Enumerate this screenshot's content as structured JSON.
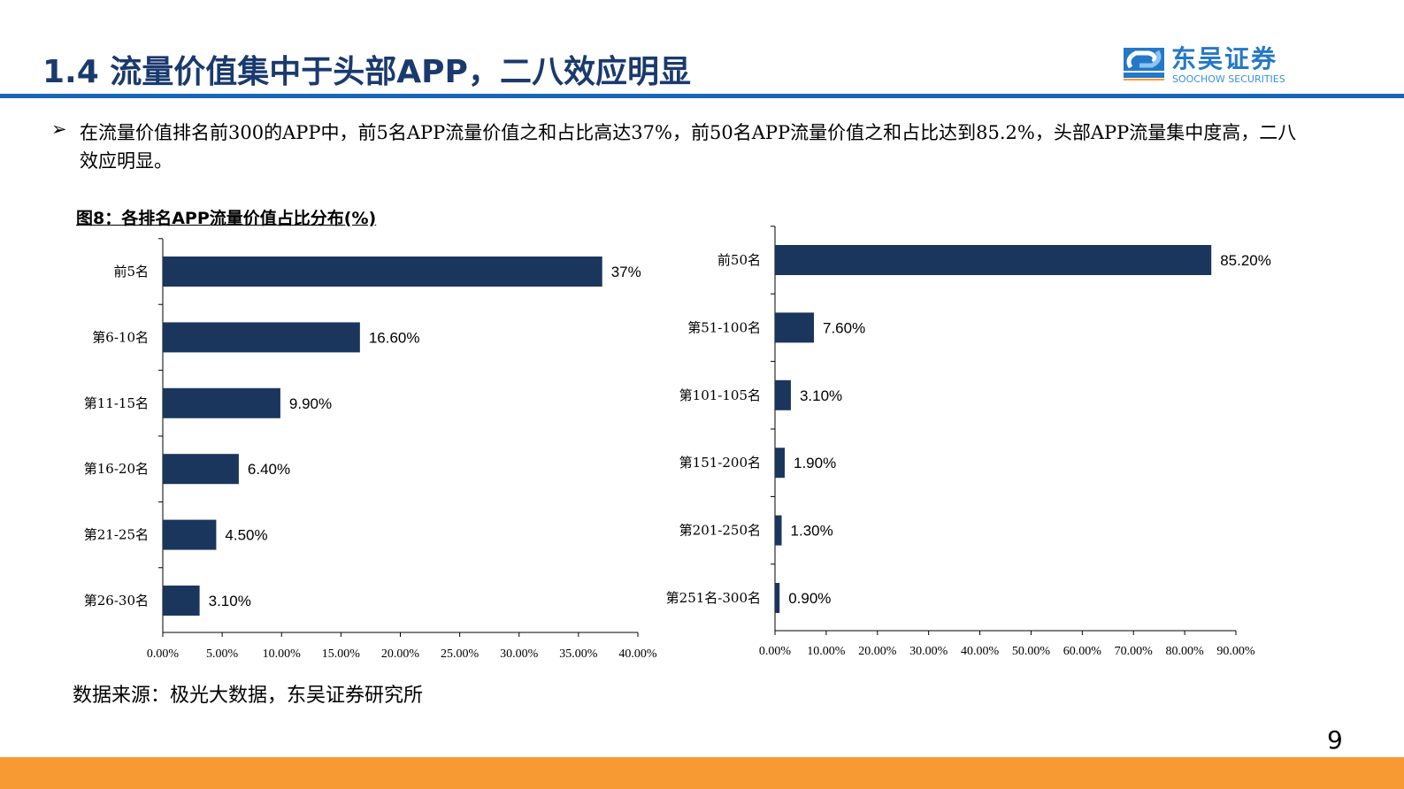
{
  "header": {
    "title": "1.4 流量价值集中于头部APP，二八效应明显",
    "logo_cn": "东吴证券",
    "logo_en": "SOOCHOW SECURITIES",
    "logo_mark": "SCS"
  },
  "bullet_icon": "arrow-bullet-icon",
  "bullet_symbol": "➢",
  "body_text": "在流量价值排名前300的APP中，前5名APP流量价值之和占比高达37%，前50名APP流量价值之和占比达到85.2%，头部APP流量集中度高，二八效应明显。",
  "chart_title": "图8：各排名APP流量价值占比分布(%)",
  "source": "数据来源：极光大数据，东吴证券研究所",
  "page_number": "9",
  "colors": {
    "bar": "#1b365d",
    "title": "#1a3a6e",
    "accent_line": "#1767b8",
    "bottom_bar": "#f79a33"
  },
  "chart_data": [
    {
      "type": "bar",
      "orientation": "horizontal",
      "categories": [
        "前5名",
        "第6-10名",
        "第11-15名",
        "第16-20名",
        "第21-25名",
        "第26-30名"
      ],
      "values": [
        37,
        16.6,
        9.9,
        6.4,
        4.5,
        3.1
      ],
      "data_labels": [
        "37%",
        "16.60%",
        "9.90%",
        "6.40%",
        "4.50%",
        "3.10%"
      ],
      "xlim": [
        0,
        40
      ],
      "xticks": [
        "0.00%",
        "5.00%",
        "10.00%",
        "15.00%",
        "20.00%",
        "25.00%",
        "30.00%",
        "35.00%",
        "40.00%"
      ],
      "grid": false
    },
    {
      "type": "bar",
      "orientation": "horizontal",
      "categories": [
        "前50名",
        "第51-100名",
        "第101-105名",
        "第151-200名",
        "第201-250名",
        "第251名-300名"
      ],
      "values": [
        85.2,
        7.6,
        3.1,
        1.9,
        1.3,
        0.9
      ],
      "data_labels": [
        "85.20%",
        "7.60%",
        "3.10%",
        "1.90%",
        "1.30%",
        "0.90%"
      ],
      "xlim": [
        0,
        90
      ],
      "xticks": [
        "0.00%",
        "10.00%",
        "20.00%",
        "30.00%",
        "40.00%",
        "50.00%",
        "60.00%",
        "70.00%",
        "80.00%",
        "90.00%"
      ],
      "grid": false
    }
  ]
}
